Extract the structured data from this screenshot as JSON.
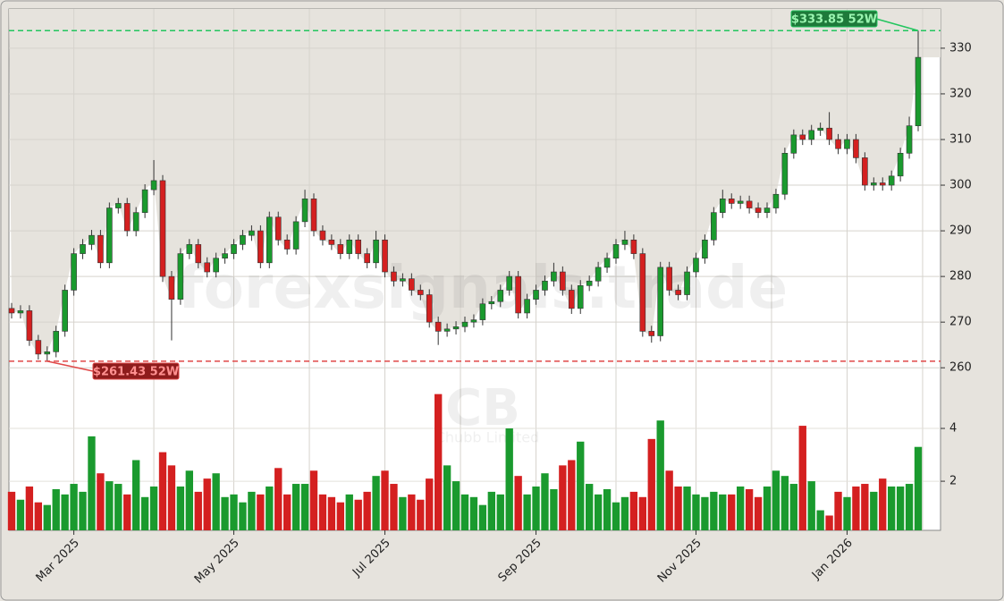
{
  "chart_data": {
    "type": "candlestick",
    "watermark": "forexsignals.trade",
    "symbol": "CB",
    "company": "Chubb Limited",
    "categories": [
      null,
      null,
      null,
      null,
      null,
      null,
      null,
      "Mar 2025",
      null,
      null,
      null,
      null,
      null,
      null,
      null,
      null,
      null,
      null,
      null,
      null,
      null,
      null,
      null,
      null,
      null,
      "May 2025",
      null,
      null,
      null,
      null,
      null,
      null,
      null,
      null,
      null,
      null,
      null,
      null,
      null,
      null,
      null,
      null,
      "Jul 2025",
      null,
      null,
      null,
      null,
      null,
      null,
      null,
      null,
      null,
      null,
      null,
      null,
      null,
      null,
      null,
      null,
      "Sep 2025",
      null,
      null,
      null,
      null,
      null,
      null,
      null,
      null,
      null,
      null,
      null,
      null,
      null,
      null,
      null,
      null,
      null,
      "Nov 2025",
      null,
      null,
      null,
      null,
      null,
      null,
      null,
      null,
      null,
      null,
      null,
      null,
      null,
      null,
      null,
      null,
      "Jan 2026",
      null,
      null,
      null,
      null,
      null,
      null,
      null,
      null
    ],
    "open": [
      273,
      272,
      272.5,
      266,
      263,
      263.5,
      268,
      277,
      285,
      287,
      289,
      283,
      295,
      296,
      290,
      294,
      299,
      301,
      280,
      275,
      285,
      287,
      283,
      281,
      284,
      285,
      287,
      289,
      290,
      283,
      293,
      288,
      286,
      292,
      297,
      290,
      288,
      287,
      285,
      288,
      285,
      283,
      288,
      281,
      279,
      279.5,
      277,
      276,
      270,
      268,
      268.5,
      269,
      270,
      270.5,
      274,
      274.5,
      277,
      280,
      272,
      275,
      277,
      279,
      281,
      277,
      273,
      278,
      279,
      282,
      284,
      287,
      288,
      285,
      268,
      267,
      282,
      277,
      276,
      281,
      284,
      288,
      294,
      297,
      296,
      296.5,
      295,
      294,
      295,
      298,
      307,
      311,
      310,
      312,
      312.5,
      310,
      308,
      310,
      306,
      300,
      300.5,
      300,
      302,
      307,
      313
    ],
    "high": [
      274.2,
      273.7,
      273.7,
      267.2,
      264.7,
      269.2,
      278.2,
      286.2,
      288.2,
      290.2,
      290.2,
      296.2,
      297.2,
      297.2,
      295.2,
      300.2,
      305.5,
      302.2,
      281.2,
      286.2,
      288.2,
      288.2,
      284.2,
      285.2,
      286.2,
      288.2,
      290.2,
      291.2,
      291.2,
      294.2,
      294.2,
      289.2,
      293.2,
      299,
      298.2,
      291.2,
      289.2,
      288.2,
      289.2,
      289.2,
      286.2,
      290,
      289.2,
      282.2,
      280.7,
      280.7,
      278.2,
      277.2,
      271.2,
      269.7,
      270.2,
      271.2,
      271.7,
      275.2,
      275.7,
      278.2,
      281.2,
      281.2,
      276.2,
      278.2,
      280.2,
      283,
      282.2,
      278.2,
      279.2,
      280.2,
      283.2,
      285.2,
      288.2,
      290,
      289.2,
      286.2,
      269.2,
      283.2,
      283.2,
      278.2,
      282.2,
      285.2,
      289.2,
      295.2,
      299,
      298.2,
      297.7,
      297.7,
      296.2,
      296.2,
      299.2,
      308.2,
      312.2,
      312.2,
      313.2,
      313.7,
      316,
      311.2,
      311.2,
      311.2,
      307.2,
      301.7,
      301.7,
      303.2,
      308.2,
      315,
      333.85
    ],
    "low": [
      270.8,
      270.8,
      264.8,
      261.8,
      261.43,
      262.3,
      266.8,
      275.8,
      283.8,
      285.8,
      281.8,
      281.8,
      293.8,
      288.8,
      288.8,
      292.8,
      297.8,
      278.8,
      266,
      273.8,
      283.8,
      281.8,
      279.8,
      279.8,
      282.8,
      283.8,
      285.8,
      287.8,
      281.8,
      281.8,
      286.8,
      284.8,
      284.8,
      290.8,
      288.8,
      286.8,
      285.8,
      283.8,
      283.8,
      283.8,
      281.8,
      281.8,
      279.8,
      277.8,
      277.8,
      275.8,
      274.8,
      268.8,
      265,
      266.8,
      267.3,
      267.8,
      268.8,
      269.3,
      272.8,
      273.3,
      275.8,
      270.8,
      270.8,
      273.8,
      275.8,
      277.8,
      275.8,
      271.8,
      271.8,
      276.8,
      277.8,
      280.8,
      282.8,
      285.8,
      283.8,
      266.8,
      265.5,
      265.8,
      275.8,
      274.8,
      274.8,
      279.8,
      282.8,
      286.8,
      292.8,
      294.8,
      294.8,
      293.8,
      292.8,
      292.8,
      293.8,
      296.8,
      305.8,
      308.8,
      308.8,
      310.8,
      308.8,
      306.8,
      306.8,
      304.8,
      298.8,
      298.8,
      298.8,
      298.8,
      300.8,
      305.8,
      311.8
    ],
    "close": [
      272,
      272.5,
      266,
      263,
      263.5,
      268,
      277,
      285,
      287,
      289,
      283,
      295,
      296,
      290,
      294,
      299,
      301,
      280,
      275,
      285,
      287,
      283,
      281,
      284,
      285,
      287,
      289,
      290,
      283,
      293,
      288,
      286,
      292,
      297,
      290,
      288,
      287,
      285,
      288,
      285,
      283,
      288,
      281,
      279,
      279.5,
      277,
      276,
      270,
      268,
      268.5,
      269,
      270,
      270.5,
      274,
      274.5,
      277,
      280,
      272,
      275,
      277,
      279,
      281,
      277,
      273,
      278,
      279,
      282,
      284,
      287,
      288,
      285,
      268,
      267,
      282,
      277,
      276,
      281,
      284,
      288,
      294,
      297,
      296,
      296.5,
      295,
      294,
      295,
      298,
      307,
      311,
      310,
      312,
      312.5,
      310,
      308,
      310,
      306,
      300,
      300.5,
      300,
      302,
      307,
      313,
      328
    ],
    "up_color": "#1a9a2e",
    "down_color": "#d42020",
    "ylim": [
      257.3,
      338.6
    ],
    "yticks": [
      260,
      270,
      280,
      290,
      300,
      310,
      320,
      330
    ],
    "annotations": [
      {
        "value": 333.85,
        "label": "$333.85 52W",
        "color": "#22c55e"
      },
      {
        "value": 261.43,
        "label": "$261.43 52W",
        "color": "#e04848"
      }
    ],
    "volume": {
      "values": [
        1.6,
        1.3,
        1.8,
        1.2,
        1.1,
        1.7,
        1.5,
        1.9,
        1.6,
        3.7,
        2.3,
        2.0,
        1.9,
        1.5,
        2.8,
        1.4,
        1.8,
        3.1,
        2.6,
        1.8,
        2.4,
        1.6,
        2.1,
        2.3,
        1.4,
        1.5,
        1.2,
        1.6,
        1.5,
        1.8,
        2.5,
        1.5,
        1.9,
        1.9,
        2.4,
        1.5,
        1.4,
        1.2,
        1.5,
        1.3,
        1.6,
        2.2,
        2.4,
        1.9,
        1.4,
        1.5,
        1.3,
        2.1,
        5.3,
        2.6,
        2.0,
        1.5,
        1.4,
        1.1,
        1.6,
        1.5,
        4.0,
        2.2,
        1.5,
        1.8,
        2.3,
        1.7,
        2.6,
        2.8,
        3.5,
        1.9,
        1.5,
        1.7,
        1.2,
        1.4,
        1.6,
        1.4,
        3.6,
        4.3,
        2.4,
        1.8,
        1.8,
        1.5,
        1.4,
        1.6,
        1.5,
        1.5,
        1.8,
        1.7,
        1.4,
        1.8,
        2.4,
        2.2,
        1.9,
        4.1,
        2.0,
        0.9,
        0.7,
        1.6,
        1.4,
        1.8,
        1.9,
        1.6,
        2.1,
        1.8,
        1.8,
        1.9,
        3.3
      ],
      "ylim": [
        0.14,
        5.83
      ],
      "yticks": [
        2,
        4
      ]
    }
  }
}
